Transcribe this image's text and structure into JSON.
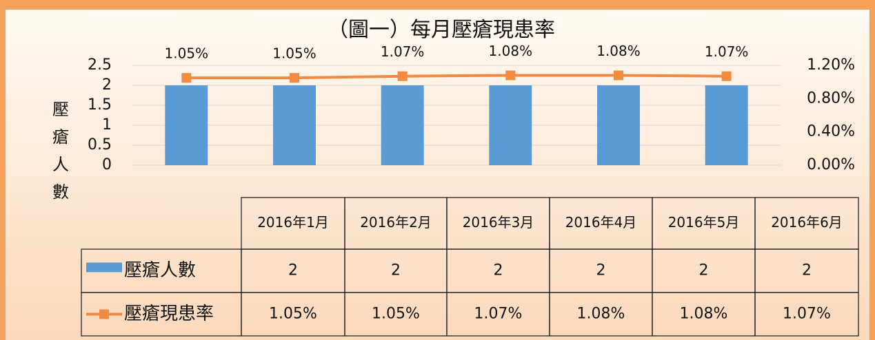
{
  "chart_data": {
    "type": "bar+line",
    "title": "（圖一）每月壓瘡現患率",
    "y_label": "壓瘡人數",
    "categories": [
      "2016年1月",
      "2016年2月",
      "2016年3月",
      "2016年4月",
      "2016年5月",
      "2016年6月"
    ],
    "series": [
      {
        "name": "壓瘡人數",
        "type": "bar",
        "color": "#5b9bd5",
        "values": [
          2,
          2,
          2,
          2,
          2,
          2
        ]
      },
      {
        "name": "壓瘡現患率",
        "type": "line",
        "axis": "y2",
        "color": "#f28b41",
        "values": [
          1.05,
          1.05,
          1.07,
          1.08,
          1.08,
          1.07
        ],
        "value_labels": [
          "1.05%",
          "1.05%",
          "1.07%",
          "1.08%",
          "1.08%",
          "1.07%"
        ]
      }
    ],
    "ylim": [
      0,
      2.5
    ],
    "yticks": [
      0,
      0.5,
      1,
      1.5,
      2,
      2.5
    ],
    "y2lim": [
      0,
      1.2
    ],
    "y2ticks": [
      {
        "value": 0,
        "label": "0.00%"
      },
      {
        "value": 0.4,
        "label": "0.40%"
      },
      {
        "value": 0.8,
        "label": "0.80%"
      },
      {
        "value": 1.2,
        "label": "1.20%"
      }
    ],
    "grid": true
  }
}
